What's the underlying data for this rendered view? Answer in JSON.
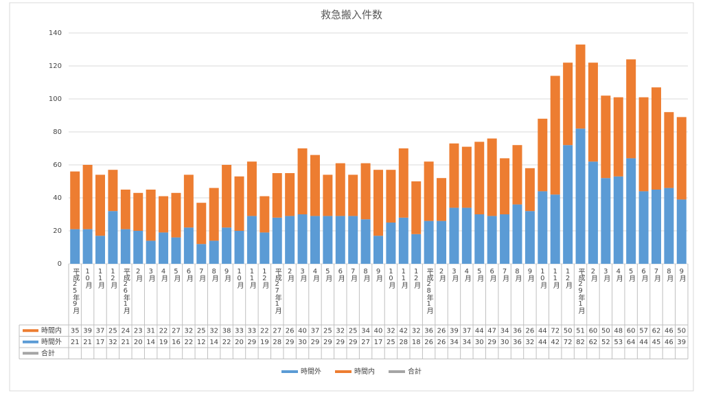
{
  "chart_data": {
    "type": "stacked_bar",
    "title": "救急搬入件数",
    "categories": [
      "平成25年9月",
      "10月",
      "11月",
      "12月",
      "平成26年1月",
      "2月",
      "3月",
      "4月",
      "5月",
      "6月",
      "7月",
      "8月",
      "9月",
      "10月",
      "11月",
      "12月",
      "平成27年1月",
      "2月",
      "3月",
      "4月",
      "5月",
      "6月",
      "7月",
      "8月",
      "9月",
      "10月",
      "11月",
      "12月",
      "平成28年1月",
      "2月",
      "3月",
      "4月",
      "5月",
      "6月",
      "7月",
      "8月",
      "9月",
      "10月",
      "11月",
      "12月",
      "平成29年1月",
      "2月",
      "3月",
      "4月",
      "5月",
      "6月",
      "7月",
      "8月",
      "9月"
    ],
    "series": [
      {
        "name": "時間外",
        "color": "#5b9bd5",
        "values": [
          21,
          21,
          17,
          32,
          21,
          20,
          14,
          19,
          16,
          22,
          12,
          14,
          22,
          20,
          29,
          19,
          28,
          29,
          30,
          29,
          29,
          29,
          29,
          27,
          17,
          25,
          28,
          18,
          26,
          26,
          34,
          34,
          30,
          29,
          30,
          36,
          32,
          44,
          42,
          72,
          82,
          62,
          52,
          53,
          64,
          44,
          45,
          46,
          39
        ]
      },
      {
        "name": "時間内",
        "color": "#ed7d31",
        "values": [
          35,
          39,
          37,
          25,
          24,
          23,
          31,
          22,
          27,
          32,
          25,
          32,
          38,
          33,
          33,
          22,
          27,
          26,
          40,
          37,
          25,
          32,
          25,
          34,
          40,
          32,
          42,
          32,
          36,
          26,
          39,
          37,
          44,
          47,
          34,
          36,
          26,
          44,
          72,
          50,
          51,
          60,
          50,
          48,
          60,
          57,
          62,
          46,
          50
        ]
      },
      {
        "name": "合計",
        "color": "#a5a5a5",
        "values": [
          null,
          null,
          null,
          null,
          null,
          null,
          null,
          null,
          null,
          null,
          null,
          null,
          null,
          null,
          null,
          null,
          null,
          null,
          null,
          null,
          null,
          null,
          null,
          null,
          null,
          null,
          null,
          null,
          null,
          null,
          null,
          null,
          null,
          null,
          null,
          null,
          null,
          null,
          null,
          null,
          null,
          null,
          null,
          null,
          null,
          null,
          null,
          null,
          null
        ]
      }
    ],
    "ylim": [
      0,
      140
    ],
    "yticks": [
      0,
      20,
      40,
      60,
      80,
      100,
      120,
      140
    ],
    "grid": true,
    "legend": "bottom"
  }
}
